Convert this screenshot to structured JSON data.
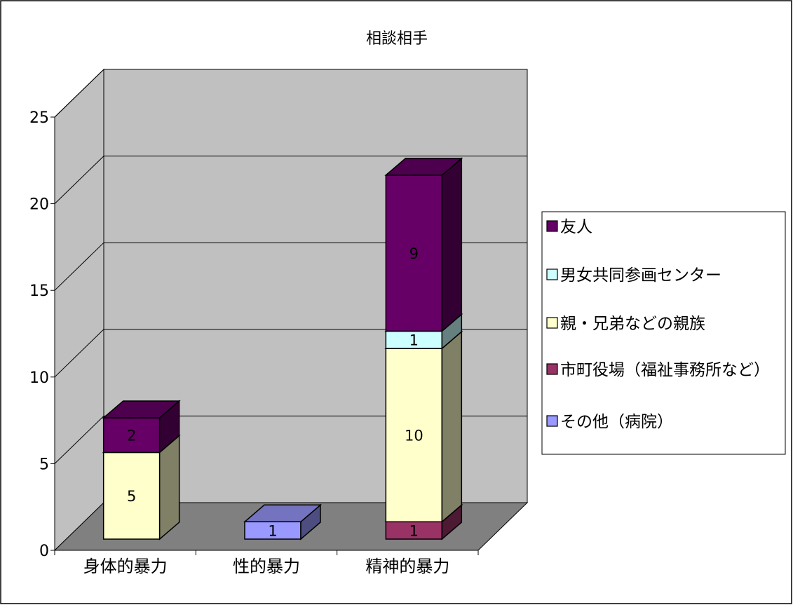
{
  "chart_data": {
    "type": "bar",
    "stacked": true,
    "three_d": true,
    "title": "相談相手",
    "categories": [
      "身体的暴力",
      "性的暴力",
      "精神的暴力"
    ],
    "ylim": [
      0,
      25
    ],
    "yticks": [
      0,
      5,
      10,
      15,
      20,
      25
    ],
    "grid": true,
    "legend_position": "right",
    "series": [
      {
        "name": "その他（病院）",
        "values": [
          0,
          1,
          0
        ],
        "color": "#9999ff"
      },
      {
        "name": "市町役場（福祉事務所など）",
        "values": [
          0,
          0,
          1
        ],
        "color": "#993366"
      },
      {
        "name": "親・兄弟などの親族",
        "values": [
          5,
          0,
          10
        ],
        "color": "#ffffcc"
      },
      {
        "name": "男女共同参画センター",
        "values": [
          0,
          0,
          1
        ],
        "color": "#ccffff"
      },
      {
        "name": "友人",
        "values": [
          2,
          0,
          9
        ],
        "color": "#660066"
      }
    ],
    "legend_order": [
      "友人",
      "男女共同参画センター",
      "親・兄弟などの親族",
      "市町役場（福祉事務所など）",
      "その他（病院）"
    ]
  }
}
